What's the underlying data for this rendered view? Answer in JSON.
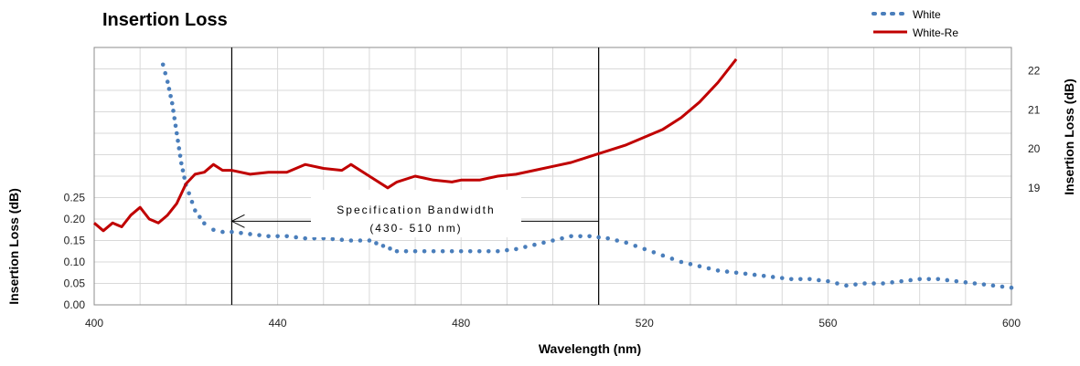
{
  "chart_data": {
    "type": "line",
    "title": "Insertion Loss",
    "xlabel": "Wavelength (nm)",
    "ylabel_left": "Insertion Loss (dB)",
    "ylabel_right": "Insertion Loss (dB)",
    "xlim": [
      400,
      600
    ],
    "ylim_left": [
      0,
      0.6
    ],
    "ylim_right": [
      16,
      22.6
    ],
    "x_ticks": [
      400,
      440,
      480,
      520,
      560,
      600
    ],
    "y_left_ticks": [
      0.0,
      0.05,
      0.1,
      0.15,
      0.2,
      0.25
    ],
    "y_left_tick_labels": [
      "0.00",
      "0.05",
      "0.10",
      "0.15",
      "0.20",
      "0.25"
    ],
    "y_right_ticks": [
      19,
      20,
      21,
      22
    ],
    "grid": true,
    "legend_position": "top-right",
    "legend": [
      "White",
      "White-Re"
    ],
    "series": [
      {
        "name": "White",
        "axis": "left",
        "style": "dotted",
        "color": "#4a7ebb",
        "x": [
          415,
          416,
          417,
          418,
          419,
          420,
          422,
          424,
          426,
          428,
          430,
          434,
          438,
          442,
          446,
          450,
          456,
          460,
          466,
          470,
          476,
          480,
          484,
          488,
          492,
          496,
          500,
          504,
          508,
          512,
          516,
          520,
          524,
          528,
          532,
          536,
          540,
          544,
          548,
          552,
          556,
          560,
          564,
          568,
          572,
          576,
          580,
          584,
          588,
          592,
          596,
          600
        ],
        "y": [
          0.56,
          0.52,
          0.47,
          0.4,
          0.33,
          0.28,
          0.22,
          0.19,
          0.175,
          0.17,
          0.17,
          0.165,
          0.16,
          0.16,
          0.155,
          0.155,
          0.15,
          0.15,
          0.125,
          0.125,
          0.125,
          0.125,
          0.125,
          0.125,
          0.13,
          0.14,
          0.15,
          0.16,
          0.16,
          0.155,
          0.145,
          0.13,
          0.115,
          0.1,
          0.09,
          0.08,
          0.075,
          0.07,
          0.065,
          0.06,
          0.06,
          0.055,
          0.045,
          0.05,
          0.05,
          0.055,
          0.06,
          0.06,
          0.055,
          0.05,
          0.045,
          0.04
        ]
      },
      {
        "name": "White-Re",
        "axis": "right",
        "style": "solid",
        "color": "#c00000",
        "x": [
          400,
          402,
          404,
          406,
          408,
          410,
          412,
          414,
          416,
          418,
          420,
          422,
          424,
          426,
          428,
          430,
          434,
          438,
          442,
          446,
          450,
          454,
          456,
          460,
          464,
          466,
          470,
          474,
          478,
          480,
          484,
          488,
          492,
          496,
          500,
          504,
          508,
          512,
          516,
          520,
          524,
          528,
          532,
          536,
          540
        ],
        "y": [
          18.1,
          17.9,
          18.1,
          18.0,
          18.3,
          18.5,
          18.2,
          18.1,
          18.3,
          18.6,
          19.1,
          19.35,
          19.4,
          19.6,
          19.45,
          19.45,
          19.35,
          19.4,
          19.4,
          19.6,
          19.5,
          19.45,
          19.6,
          19.3,
          19.0,
          19.15,
          19.3,
          19.2,
          19.15,
          19.2,
          19.2,
          19.3,
          19.35,
          19.45,
          19.55,
          19.65,
          19.8,
          19.95,
          20.1,
          20.3,
          20.5,
          20.8,
          21.2,
          21.7,
          22.3
        ]
      }
    ],
    "annotation": {
      "line1": "Specification Bandwidth",
      "line2": "(430- 510 nm)",
      "x_start": 430,
      "x_end": 510
    }
  }
}
